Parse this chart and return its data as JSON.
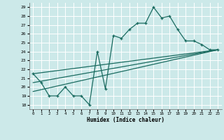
{
  "xlabel": "Humidex (Indice chaleur)",
  "bg_color": "#cce9e9",
  "line_color": "#1a6b60",
  "grid_color": "#ffffff",
  "xlim": [
    -0.5,
    23.5
  ],
  "ylim": [
    17.5,
    29.5
  ],
  "xticks": [
    0,
    1,
    2,
    3,
    4,
    5,
    6,
    7,
    8,
    9,
    10,
    11,
    12,
    13,
    14,
    15,
    16,
    17,
    18,
    19,
    20,
    21,
    22,
    23
  ],
  "yticks": [
    18,
    19,
    20,
    21,
    22,
    23,
    24,
    25,
    26,
    27,
    28,
    29
  ],
  "series1_x": [
    0,
    1,
    2,
    3,
    4,
    5,
    6,
    7,
    8,
    9,
    10,
    11,
    12,
    13,
    14,
    15,
    16,
    17,
    18,
    19,
    20,
    21,
    22,
    23
  ],
  "series1_y": [
    21.5,
    20.5,
    19.0,
    19.0,
    20.0,
    19.0,
    19.0,
    18.0,
    24.0,
    19.8,
    25.8,
    25.5,
    26.5,
    27.2,
    27.2,
    29.0,
    27.8,
    28.0,
    26.5,
    25.2,
    25.2,
    24.8,
    24.2,
    24.2
  ],
  "series2_x": [
    0,
    23
  ],
  "series2_y": [
    19.5,
    24.2
  ],
  "series3_x": [
    0,
    23
  ],
  "series3_y": [
    20.5,
    24.2
  ],
  "series4_x": [
    0,
    23
  ],
  "series4_y": [
    21.5,
    24.2
  ]
}
